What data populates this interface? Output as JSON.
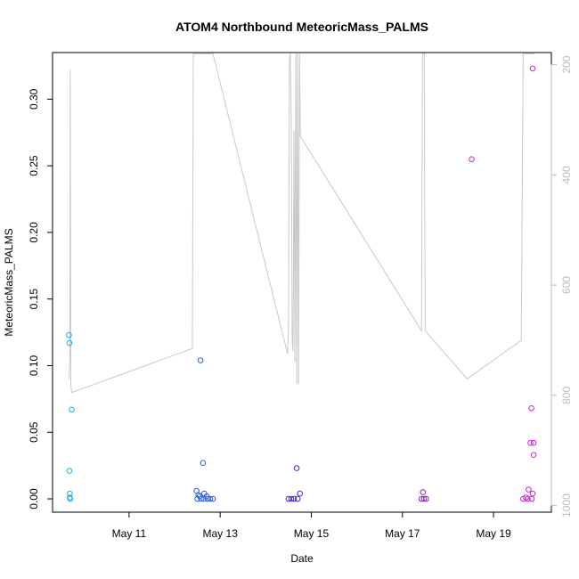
{
  "chart_data": {
    "type": "scatter",
    "title": "ATOM4 Northbound MeteoricMass_PALMS",
    "xlabel": "Date",
    "ylabel": "MeteoricMass_PALMS",
    "y_ticks": [
      "0.00",
      "0.05",
      "0.10",
      "0.15",
      "0.20",
      "0.25",
      "0.30"
    ],
    "y_tick_values": [
      0,
      0.05,
      0.1,
      0.15,
      0.2,
      0.25,
      0.3
    ],
    "ylim": [
      -0.01,
      0.335
    ],
    "x_ticks": [
      "May 11",
      "May 13",
      "May 15",
      "May 17",
      "May 19"
    ],
    "x_tick_values": [
      11,
      13,
      15,
      17,
      19
    ],
    "xlim": [
      9.32,
      20.27
    ],
    "y2_ticks": [
      "200",
      "400",
      "600",
      "800",
      "1000"
    ],
    "y2_tick_values": [
      200,
      400,
      600,
      800,
      1000
    ],
    "y2lim": [
      1012,
      178
    ],
    "grid": false,
    "legend": "none",
    "points": [
      {
        "x": 9.68,
        "y": 0.123,
        "color": "#1ab2e6"
      },
      {
        "x": 9.69,
        "y": 0.117,
        "color": "#1ab2e6"
      },
      {
        "x": 9.74,
        "y": 0.067,
        "color": "#1ab2e6"
      },
      {
        "x": 9.69,
        "y": 0.021,
        "color": "#1ab2e6"
      },
      {
        "x": 9.7,
        "y": 0.004,
        "color": "#1ab2e6"
      },
      {
        "x": 9.7,
        "y": 0.001,
        "color": "#1ab2e6"
      },
      {
        "x": 9.71,
        "y": 0.0,
        "color": "#1ab2e6"
      },
      {
        "x": 12.57,
        "y": 0.104,
        "color": "#2d5fe8"
      },
      {
        "x": 12.62,
        "y": 0.027,
        "color": "#2d5fe8"
      },
      {
        "x": 12.48,
        "y": 0.006,
        "color": "#2d5fe8"
      },
      {
        "x": 12.52,
        "y": 0.003,
        "color": "#2d5fe8"
      },
      {
        "x": 12.55,
        "y": 0.002,
        "color": "#2d5fe8"
      },
      {
        "x": 12.65,
        "y": 0.004,
        "color": "#2d5fe8"
      },
      {
        "x": 12.7,
        "y": 0.002,
        "color": "#2d5fe8"
      },
      {
        "x": 12.5,
        "y": 0.0,
        "color": "#2d5fe8"
      },
      {
        "x": 12.58,
        "y": 0.0,
        "color": "#2d5fe8"
      },
      {
        "x": 12.64,
        "y": 0.0,
        "color": "#2d5fe8"
      },
      {
        "x": 12.72,
        "y": 0.0,
        "color": "#2d5fe8"
      },
      {
        "x": 12.78,
        "y": 0.0,
        "color": "#2d5fe8"
      },
      {
        "x": 12.84,
        "y": 0.0,
        "color": "#2d5fe8"
      },
      {
        "x": 14.68,
        "y": 0.023,
        "color": "#3a2dd6"
      },
      {
        "x": 14.75,
        "y": 0.004,
        "color": "#3a2dd6"
      },
      {
        "x": 14.5,
        "y": 0.0,
        "color": "#3a2dd6"
      },
      {
        "x": 14.56,
        "y": 0.0,
        "color": "#3a2dd6"
      },
      {
        "x": 14.62,
        "y": 0.0,
        "color": "#3a2dd6"
      },
      {
        "x": 14.7,
        "y": 0.0,
        "color": "#3a2dd6"
      },
      {
        "x": 17.45,
        "y": 0.005,
        "color": "#8e1fd0"
      },
      {
        "x": 17.42,
        "y": 0.0,
        "color": "#8e1fd0"
      },
      {
        "x": 17.47,
        "y": 0.0,
        "color": "#8e1fd0"
      },
      {
        "x": 17.52,
        "y": 0.0,
        "color": "#8e1fd0"
      },
      {
        "x": 18.52,
        "y": 0.255,
        "color": "#d41fd0"
      },
      {
        "x": 19.86,
        "y": 0.323,
        "color": "#d41fd0"
      },
      {
        "x": 19.83,
        "y": 0.068,
        "color": "#d41fd0"
      },
      {
        "x": 19.81,
        "y": 0.042,
        "color": "#d41fd0"
      },
      {
        "x": 19.88,
        "y": 0.042,
        "color": "#d41fd0"
      },
      {
        "x": 19.88,
        "y": 0.033,
        "color": "#d41fd0"
      },
      {
        "x": 19.77,
        "y": 0.007,
        "color": "#d41fd0"
      },
      {
        "x": 19.86,
        "y": 0.004,
        "color": "#d41fd0"
      },
      {
        "x": 19.65,
        "y": 0.0,
        "color": "#d41fd0"
      },
      {
        "x": 19.71,
        "y": 0.001,
        "color": "#d41fd0"
      },
      {
        "x": 19.75,
        "y": 0.0,
        "color": "#d41fd0"
      },
      {
        "x": 19.84,
        "y": 0.0,
        "color": "#d41fd0"
      }
    ],
    "pressure_line": {
      "color": "#c8c8c8",
      "x": [
        9.68,
        9.7,
        9.71,
        9.72,
        9.74,
        12.39,
        12.41,
        12.43,
        12.46,
        12.48,
        12.52,
        12.56,
        12.6,
        12.64,
        12.68,
        12.72,
        12.76,
        12.8,
        12.82,
        12.84,
        14.48,
        14.5,
        14.52,
        14.54,
        14.56,
        14.58,
        14.6,
        14.62,
        14.64,
        14.66,
        14.68,
        14.7,
        14.72,
        14.74,
        14.76,
        17.42,
        17.44,
        17.46,
        17.48,
        17.5,
        18.42,
        19.61,
        19.65,
        19.7,
        19.75,
        19.8,
        19.84,
        19.87,
        19.9
      ],
      "p": [
        770,
        730,
        210,
        780,
        795,
        715,
        180,
        180,
        180,
        180,
        180,
        180,
        180,
        180,
        180,
        180,
        180,
        180,
        180,
        180,
        725,
        670,
        190,
        180,
        300,
        700,
        720,
        320,
        740,
        180,
        780,
        180,
        780,
        180,
        330,
        683,
        180,
        180,
        180,
        683,
        770,
        700,
        180,
        180,
        180,
        180,
        180,
        180,
        180
      ]
    }
  }
}
